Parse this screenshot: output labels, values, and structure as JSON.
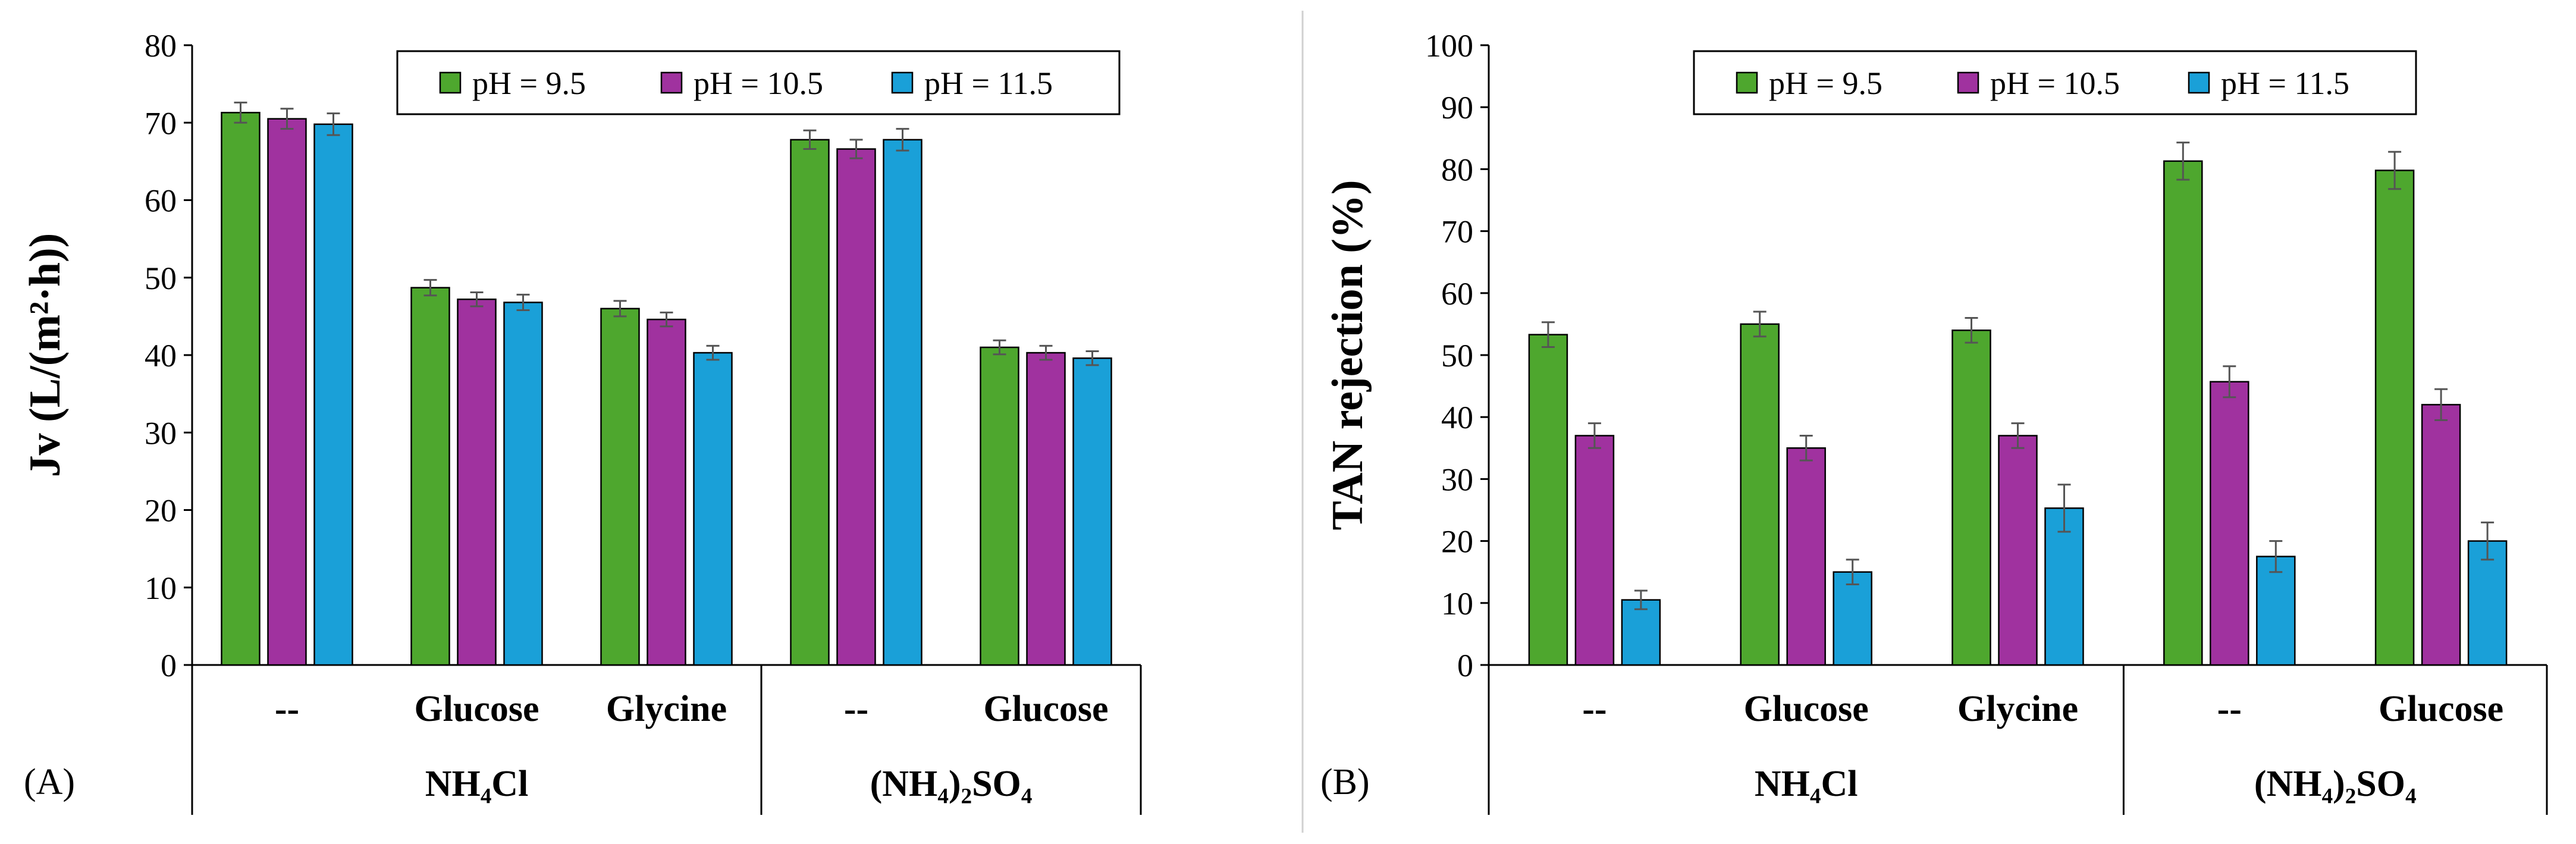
{
  "colors": {
    "pH_9_5": "#4ea72e",
    "pH_10_5": "#a0329f",
    "pH_11_5": "#1aa0d8",
    "error": "#555555",
    "divider": "#d0d0d0"
  },
  "chart_data": [
    {
      "type": "bar",
      "panel_label": "(A)",
      "ylabel": "Jv (L/(m²·h))",
      "ylim": [
        0,
        80
      ],
      "yticks": [
        0,
        10,
        20,
        30,
        40,
        50,
        60,
        70,
        80
      ],
      "categories": [
        "--",
        "Glucose",
        "Glycine",
        "--",
        "Glucose"
      ],
      "groups": [
        {
          "label": "NH₄Cl",
          "span": [
            0,
            2
          ]
        },
        {
          "label": "(NH₄)₂SO₄",
          "span": [
            3,
            4
          ]
        }
      ],
      "legend": [
        "pH = 9.5",
        "pH = 10.5",
        "pH = 11.5"
      ],
      "series": [
        {
          "name": "pH = 9.5",
          "values": [
            71.3,
            48.7,
            46.0,
            67.8,
            41.0
          ],
          "errors": [
            1.3,
            1.0,
            1.0,
            1.2,
            0.9
          ]
        },
        {
          "name": "pH = 10.5",
          "values": [
            70.5,
            47.2,
            44.6,
            66.6,
            40.3
          ],
          "errors": [
            1.3,
            0.9,
            0.9,
            1.2,
            0.9
          ]
        },
        {
          "name": "pH = 11.5",
          "values": [
            69.8,
            46.8,
            40.3,
            67.8,
            39.6
          ],
          "errors": [
            1.4,
            1.0,
            0.9,
            1.4,
            0.9
          ]
        }
      ]
    },
    {
      "type": "bar",
      "panel_label": "(B)",
      "ylabel": "TAN rejection (%)",
      "ylim": [
        0,
        100
      ],
      "yticks": [
        0,
        10,
        20,
        30,
        40,
        50,
        60,
        70,
        80,
        90,
        100
      ],
      "categories": [
        "--",
        "Glucose",
        "Glycine",
        "--",
        "Glucose"
      ],
      "groups": [
        {
          "label": "NH₄Cl",
          "span": [
            0,
            2
          ]
        },
        {
          "label": "(NH₄)₂SO₄",
          "span": [
            3,
            4
          ]
        }
      ],
      "legend": [
        "pH = 9.5",
        "pH = 10.5",
        "pH = 11.5"
      ],
      "series": [
        {
          "name": "pH = 9.5",
          "values": [
            53.3,
            55.0,
            54.0,
            81.3,
            79.8
          ],
          "errors": [
            2.0,
            2.0,
            2.0,
            3.0,
            3.0
          ]
        },
        {
          "name": "pH = 10.5",
          "values": [
            37.0,
            35.0,
            37.0,
            45.7,
            42.0
          ],
          "errors": [
            2.0,
            2.0,
            2.0,
            2.5,
            2.5
          ]
        },
        {
          "name": "pH = 11.5",
          "values": [
            10.5,
            15.0,
            25.3,
            17.5,
            20.0
          ],
          "errors": [
            1.5,
            2.0,
            3.8,
            2.5,
            3.0
          ]
        }
      ]
    }
  ]
}
